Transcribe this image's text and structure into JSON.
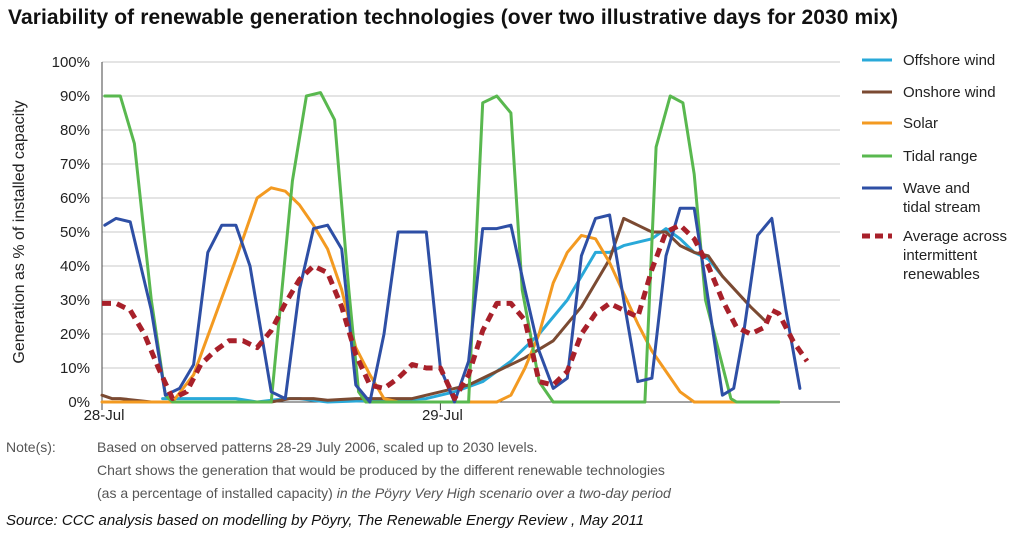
{
  "title": "Variability of renewable generation technologies (over two illustrative days for 2030 mix)",
  "notes": {
    "label": "Note(s):",
    "line1": "Based on observed patterns 28-29 July 2006, scaled up to 2030 levels.",
    "line2": "Chart shows the generation that would be produced by the different renewable technologies",
    "line3_plain": "(as a percentage of installed capacity)",
    "line3_italic": "in the Pöyry Very High scenario over a two-day period"
  },
  "source": "Source: CCC analysis based on modelling by Pöyry, The Renewable  Energy Review , May 2011",
  "chart_data": {
    "type": "line",
    "ylabel": "Generation as % of installed capacity",
    "ylim": [
      0,
      100
    ],
    "yticks": [
      "0%",
      "10%",
      "20%",
      "30%",
      "40%",
      "50%",
      "60%",
      "70%",
      "80%",
      "90%",
      "100%"
    ],
    "xlim": [
      0,
      48
    ],
    "xticks": [
      {
        "x": 0,
        "label": "28-Jul"
      },
      {
        "x": 24,
        "label": "29-Jul"
      }
    ],
    "grid": true,
    "legend_position": "right",
    "series": [
      {
        "name": "Offshore wind",
        "color": "#29a9d9",
        "dash": false,
        "points": [
          [
            4.3,
            1
          ],
          [
            9.5,
            1
          ],
          [
            11,
            0
          ],
          [
            13,
            1
          ],
          [
            14,
            1
          ],
          [
            16,
            0
          ],
          [
            23,
            1
          ],
          [
            25,
            3
          ],
          [
            27,
            6
          ],
          [
            29,
            12
          ],
          [
            31,
            20
          ],
          [
            33,
            30
          ],
          [
            35,
            44
          ],
          [
            36,
            44
          ],
          [
            37,
            46
          ],
          [
            38,
            47
          ],
          [
            39,
            48
          ],
          [
            40,
            51
          ],
          [
            41,
            48
          ],
          [
            42,
            44
          ],
          [
            43,
            42
          ],
          [
            44,
            37
          ]
        ]
      },
      {
        "name": "Onshore wind",
        "color": "#7b4a32",
        "dash": false,
        "points": [
          [
            0,
            2
          ],
          [
            0.7,
            1
          ],
          [
            1.3,
            1
          ],
          [
            3.5,
            0
          ],
          [
            12,
            0
          ],
          [
            13.3,
            1
          ],
          [
            15,
            1
          ],
          [
            16,
            0.5
          ],
          [
            18,
            1
          ],
          [
            20,
            1
          ],
          [
            22,
            1
          ],
          [
            23,
            2
          ],
          [
            25,
            4
          ],
          [
            26,
            5
          ],
          [
            28,
            9
          ],
          [
            30,
            13
          ],
          [
            32,
            18
          ],
          [
            33,
            23
          ],
          [
            34,
            28
          ],
          [
            35,
            35
          ],
          [
            36,
            42
          ],
          [
            37,
            54
          ],
          [
            38,
            52
          ],
          [
            39,
            50
          ],
          [
            40,
            50
          ],
          [
            41,
            46
          ],
          [
            42,
            44
          ],
          [
            43,
            43
          ],
          [
            44,
            37
          ],
          [
            46,
            28
          ],
          [
            47,
            24
          ]
        ]
      },
      {
        "name": "Solar",
        "color": "#f39a21",
        "dash": false,
        "points": [
          [
            0,
            0
          ],
          [
            5,
            0
          ],
          [
            6.5,
            8
          ],
          [
            8,
            25
          ],
          [
            9.5,
            42
          ],
          [
            11,
            60
          ],
          [
            12,
            63
          ],
          [
            13,
            62
          ],
          [
            14,
            58
          ],
          [
            15,
            52
          ],
          [
            16,
            45
          ],
          [
            17,
            33
          ],
          [
            18,
            16
          ],
          [
            19,
            8
          ],
          [
            20,
            1
          ],
          [
            21,
            0
          ],
          [
            28,
            0
          ],
          [
            29,
            2
          ],
          [
            30,
            10
          ],
          [
            31,
            20
          ],
          [
            32,
            35
          ],
          [
            33,
            44
          ],
          [
            34,
            49
          ],
          [
            35,
            48
          ],
          [
            36,
            41
          ],
          [
            37,
            32
          ],
          [
            38,
            23
          ],
          [
            39,
            15
          ],
          [
            40,
            9
          ],
          [
            41,
            3
          ],
          [
            42,
            0
          ],
          [
            48,
            0
          ]
        ]
      },
      {
        "name": "Tidal range",
        "color": "#59b84f",
        "dash": false,
        "points": [
          [
            0.2,
            90
          ],
          [
            1.3,
            90
          ],
          [
            2.3,
            76
          ],
          [
            3.5,
            30
          ],
          [
            4.5,
            2
          ],
          [
            5,
            0
          ],
          [
            12,
            0
          ],
          [
            13.5,
            65
          ],
          [
            14.5,
            90
          ],
          [
            15.5,
            91
          ],
          [
            16.5,
            83
          ],
          [
            17.5,
            33
          ],
          [
            18.2,
            3
          ],
          [
            18.7,
            0
          ],
          [
            26,
            0
          ],
          [
            27,
            88
          ],
          [
            28,
            90
          ],
          [
            29,
            85
          ],
          [
            29.8,
            33
          ],
          [
            31,
            6
          ],
          [
            32,
            0
          ],
          [
            38.5,
            0
          ],
          [
            39.3,
            75
          ],
          [
            40.3,
            90
          ],
          [
            41.2,
            88
          ],
          [
            42,
            67
          ],
          [
            42.8,
            30
          ],
          [
            43.8,
            14
          ],
          [
            44.6,
            1
          ],
          [
            45,
            0
          ],
          [
            48,
            0
          ]
        ]
      },
      {
        "name": "Wave and tidal stream",
        "color": "#2e4fa5",
        "dash": false,
        "points": [
          [
            0.2,
            52
          ],
          [
            1,
            54
          ],
          [
            2,
            53
          ],
          [
            3.5,
            27
          ],
          [
            4.5,
            2
          ],
          [
            5.5,
            4
          ],
          [
            6.5,
            11
          ],
          [
            7.5,
            44
          ],
          [
            8.5,
            52
          ],
          [
            9.5,
            52
          ],
          [
            10.5,
            40
          ],
          [
            12,
            3
          ],
          [
            13,
            1
          ],
          [
            14,
            33
          ],
          [
            15,
            51
          ],
          [
            16,
            52
          ],
          [
            17,
            45
          ],
          [
            18,
            5
          ],
          [
            19,
            0
          ],
          [
            20,
            20
          ],
          [
            21,
            50
          ],
          [
            22,
            50
          ],
          [
            23,
            50
          ],
          [
            24,
            10
          ],
          [
            25,
            0
          ],
          [
            26,
            12
          ],
          [
            27,
            51
          ],
          [
            28,
            51
          ],
          [
            29,
            52
          ],
          [
            30,
            33
          ],
          [
            31,
            15
          ],
          [
            32,
            4
          ],
          [
            33,
            7
          ],
          [
            34,
            43
          ],
          [
            35,
            54
          ],
          [
            36,
            55
          ],
          [
            37,
            30
          ],
          [
            38,
            6
          ],
          [
            39,
            7
          ],
          [
            40,
            43
          ],
          [
            41,
            57
          ],
          [
            42,
            57
          ],
          [
            43,
            30
          ],
          [
            44,
            2
          ],
          [
            44.8,
            4
          ],
          [
            45.5,
            20
          ],
          [
            46.5,
            49
          ],
          [
            47.5,
            54
          ],
          [
            48.5,
            27
          ],
          [
            49.5,
            4
          ]
        ]
      },
      {
        "name": "Average across intermittent renewables",
        "color": "#a8202a",
        "dash": true,
        "points": [
          [
            0,
            29
          ],
          [
            1,
            29
          ],
          [
            2,
            27
          ],
          [
            3,
            20
          ],
          [
            4,
            10
          ],
          [
            5,
            1
          ],
          [
            6,
            3
          ],
          [
            7,
            11
          ],
          [
            8,
            15
          ],
          [
            9,
            18
          ],
          [
            10,
            18
          ],
          [
            11,
            16
          ],
          [
            12,
            21
          ],
          [
            13,
            29
          ],
          [
            14,
            36
          ],
          [
            15,
            40
          ],
          [
            16,
            38
          ],
          [
            17,
            28
          ],
          [
            18,
            14
          ],
          [
            19,
            5
          ],
          [
            20,
            4
          ],
          [
            21,
            7
          ],
          [
            22,
            11
          ],
          [
            23,
            10
          ],
          [
            24,
            10
          ],
          [
            25,
            1
          ],
          [
            26,
            8
          ],
          [
            27,
            21
          ],
          [
            28,
            29
          ],
          [
            29,
            29
          ],
          [
            30,
            24
          ],
          [
            31,
            6
          ],
          [
            32,
            5
          ],
          [
            33,
            9
          ],
          [
            34,
            20
          ],
          [
            35,
            26
          ],
          [
            36,
            29
          ],
          [
            37,
            27
          ],
          [
            38,
            25
          ],
          [
            39,
            39
          ],
          [
            40,
            50
          ],
          [
            41,
            52
          ],
          [
            42,
            48
          ],
          [
            43,
            40
          ],
          [
            44,
            30
          ],
          [
            45,
            22
          ],
          [
            46,
            20
          ],
          [
            47,
            22
          ],
          [
            47.5,
            27
          ],
          [
            48,
            26
          ],
          [
            49,
            18
          ],
          [
            50,
            12
          ]
        ]
      }
    ],
    "legend": [
      {
        "label_lines": [
          "Offshore wind"
        ]
      },
      {
        "label_lines": [
          "Onshore wind"
        ]
      },
      {
        "label_lines": [
          "Solar"
        ]
      },
      {
        "label_lines": [
          "Tidal range"
        ]
      },
      {
        "label_lines": [
          "Wave and",
          "tidal stream"
        ]
      },
      {
        "label_lines": [
          "Average across",
          "intermittent",
          "renewables"
        ]
      }
    ]
  }
}
